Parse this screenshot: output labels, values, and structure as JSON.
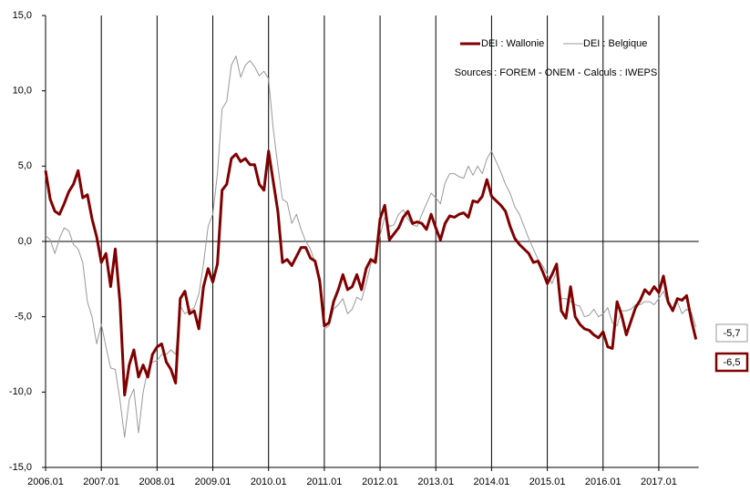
{
  "chart_data": {
    "type": "line",
    "annotation": "Sources : FOREM - ONEM - Calculs : IWEPS",
    "categories": [
      "2006.01",
      null,
      null,
      null,
      null,
      null,
      null,
      null,
      null,
      null,
      null,
      null,
      "2007.01",
      null,
      null,
      null,
      null,
      null,
      null,
      null,
      null,
      null,
      null,
      null,
      "2008.01",
      null,
      null,
      null,
      null,
      null,
      null,
      null,
      null,
      null,
      null,
      null,
      "2009.01",
      null,
      null,
      null,
      null,
      null,
      null,
      null,
      null,
      null,
      null,
      null,
      "2010.01",
      null,
      null,
      null,
      null,
      null,
      null,
      null,
      null,
      null,
      null,
      null,
      "2011.01",
      null,
      null,
      null,
      null,
      null,
      null,
      null,
      null,
      null,
      null,
      null,
      "2012.01",
      null,
      null,
      null,
      null,
      null,
      null,
      null,
      null,
      null,
      null,
      null,
      "2013.01",
      null,
      null,
      null,
      null,
      null,
      null,
      null,
      null,
      null,
      null,
      null,
      "2014.01",
      null,
      null,
      null,
      null,
      null,
      null,
      null,
      null,
      null,
      null,
      null,
      "2015.01",
      null,
      null,
      null,
      null,
      null,
      null,
      null,
      null,
      null,
      null,
      null,
      "2016.01",
      null,
      null,
      null,
      null,
      null,
      null,
      null,
      null,
      null,
      null,
      null,
      "2017.01",
      null,
      null,
      null,
      null,
      null,
      null,
      null,
      null
    ],
    "series": [
      {
        "name": "DEI : Wallonie",
        "color": "#800000",
        "width": 3,
        "values": [
          4.7,
          2.8,
          2.0,
          1.8,
          2.5,
          3.3,
          3.8,
          4.7,
          2.9,
          3.1,
          1.5,
          0.3,
          -1.4,
          -0.8,
          -3.0,
          -0.5,
          -4.0,
          -10.2,
          -8.2,
          -7.2,
          -9.0,
          -8.2,
          -9.0,
          -7.5,
          -7.0,
          -6.8,
          -8.0,
          -8.5,
          -9.4,
          -3.8,
          -3.3,
          -4.8,
          -4.6,
          -5.8,
          -3.0,
          -1.8,
          -2.7,
          -1.5,
          3.4,
          3.8,
          5.5,
          5.8,
          5.3,
          5.5,
          5.1,
          5.1,
          3.8,
          3.4,
          6.0,
          4.0,
          2.0,
          -1.4,
          -1.2,
          -1.6,
          -1.0,
          -0.4,
          -0.4,
          -1.1,
          -1.3,
          -2.6,
          -5.6,
          -5.4,
          -4.0,
          -3.2,
          -2.2,
          -3.2,
          -3.0,
          -2.2,
          -3.2,
          -1.8,
          -1.2,
          -1.4,
          1.5,
          2.4,
          0.1,
          0.5,
          0.9,
          1.6,
          2.0,
          1.2,
          1.3,
          1.2,
          0.8,
          1.8,
          0.9,
          0.1,
          1.2,
          1.7,
          1.6,
          1.8,
          1.9,
          1.6,
          2.7,
          2.6,
          3.0,
          4.1,
          3.0,
          2.7,
          2.4,
          2.0,
          1.0,
          0.2,
          -0.2,
          -0.5,
          -0.8,
          -1.4,
          -1.3,
          -2.0,
          -2.8,
          -2.2,
          -1.5,
          -4.6,
          -5.1,
          -3.0,
          -5.0,
          -5.5,
          -5.8,
          -5.9,
          -6.2,
          -6.4,
          -6.0,
          -7.0,
          -7.1,
          -4.0,
          -4.9,
          -6.2,
          -5.3,
          -4.4,
          -3.9,
          -3.2,
          -3.5,
          -3.0,
          -3.4,
          -2.3,
          -4.0,
          -4.6,
          -3.8,
          -3.9,
          -3.6,
          -5.2,
          -6.5
        ],
        "value_labels": [
          null,
          null,
          null,
          null,
          null,
          null,
          null,
          null,
          null,
          null,
          null,
          null,
          null,
          null,
          null,
          null,
          null,
          null,
          null,
          null,
          null,
          null,
          null,
          null,
          null,
          null,
          null,
          null,
          null,
          null,
          null,
          null,
          null,
          null,
          null,
          null,
          null,
          null,
          null,
          null,
          null,
          null,
          null,
          null,
          null,
          null,
          null,
          null,
          null,
          null,
          null,
          null,
          null,
          null,
          null,
          null,
          null,
          null,
          null,
          null,
          null,
          null,
          null,
          null,
          null,
          null,
          null,
          null,
          null,
          null,
          null,
          null,
          null,
          null,
          null,
          null,
          null,
          null,
          null,
          null,
          null,
          null,
          null,
          null,
          null,
          null,
          null,
          null,
          null,
          null,
          null,
          null,
          null,
          null,
          null,
          null,
          null,
          null,
          null,
          null,
          null,
          null,
          null,
          null,
          null,
          null,
          null,
          null,
          null,
          null,
          null,
          null,
          null,
          null,
          null,
          null,
          null,
          null,
          null,
          null,
          null,
          null,
          null,
          null,
          null,
          null,
          null,
          null,
          null,
          null,
          null,
          null,
          null,
          null,
          null,
          null,
          null,
          null,
          null,
          null,
          "-6,5"
        ]
      },
      {
        "name": "DEI : Belgique",
        "color": "#999999",
        "width": 1,
        "values": [
          0.4,
          0.1,
          -0.8,
          0.2,
          0.9,
          0.7,
          -0.2,
          -0.5,
          -1.4,
          -4.0,
          -5.0,
          -6.8,
          -5.5,
          -7.0,
          -8.4,
          -8.5,
          -10.5,
          -13.0,
          -10.5,
          -9.8,
          -12.7,
          -10.0,
          -8.5,
          -8.0,
          -7.9,
          -7.5,
          -7.5,
          -7.2,
          -7.5,
          -4.3,
          -4.8,
          -4.6,
          -4.4,
          -3.5,
          -1.5,
          1.0,
          1.8,
          4.5,
          8.8,
          9.3,
          11.7,
          12.3,
          10.9,
          11.7,
          12.0,
          11.6,
          11.0,
          11.3,
          10.8,
          7.5,
          5.0,
          2.8,
          2.6,
          1.2,
          1.8,
          0.8,
          0.0,
          -0.5,
          -1.4,
          -3.0,
          -5.8,
          -5.6,
          -4.5,
          -4.2,
          -3.8,
          -4.8,
          -4.5,
          -3.7,
          -3.9,
          -2.8,
          -1.5,
          -1.0,
          0.4,
          1.6,
          1.0,
          1.1,
          1.8,
          2.1,
          1.5,
          1.1,
          1.0,
          1.8,
          2.5,
          3.2,
          2.9,
          2.5,
          3.9,
          4.5,
          4.5,
          4.3,
          4.2,
          5.0,
          4.4,
          5.0,
          4.5,
          5.5,
          6.0,
          5.3,
          4.6,
          3.8,
          3.2,
          2.3,
          1.8,
          1.0,
          0.2,
          -0.5,
          -1.2,
          -1.6,
          -2.2,
          -2.8,
          -2.0,
          -3.8,
          -3.8,
          -4.0,
          -4.2,
          -4.3,
          -5.0,
          -4.9,
          -4.5,
          -5.0,
          -4.8,
          -4.4,
          -5.4,
          -5.6,
          -4.6,
          -4.6,
          -4.5,
          -4.2,
          -4.2,
          -4.0,
          -4.0,
          -4.2,
          -3.8,
          -3.3,
          -4.2,
          -4.5,
          -4.0,
          -4.8,
          -4.5,
          -4.7,
          -5.7
        ],
        "value_labels": [
          null,
          null,
          null,
          null,
          null,
          null,
          null,
          null,
          null,
          null,
          null,
          null,
          null,
          null,
          null,
          null,
          null,
          null,
          null,
          null,
          null,
          null,
          null,
          null,
          null,
          null,
          null,
          null,
          null,
          null,
          null,
          null,
          null,
          null,
          null,
          null,
          null,
          null,
          null,
          null,
          null,
          null,
          null,
          null,
          null,
          null,
          null,
          null,
          null,
          null,
          null,
          null,
          null,
          null,
          null,
          null,
          null,
          null,
          null,
          null,
          null,
          null,
          null,
          null,
          null,
          null,
          null,
          null,
          null,
          null,
          null,
          null,
          null,
          null,
          null,
          null,
          null,
          null,
          null,
          null,
          null,
          null,
          null,
          null,
          null,
          null,
          null,
          null,
          null,
          null,
          null,
          null,
          null,
          null,
          null,
          null,
          null,
          null,
          null,
          null,
          null,
          null,
          null,
          null,
          null,
          null,
          null,
          null,
          null,
          null,
          null,
          null,
          null,
          null,
          null,
          null,
          null,
          null,
          null,
          null,
          null,
          null,
          null,
          null,
          null,
          null,
          null,
          null,
          null,
          null,
          null,
          null,
          null,
          null,
          null,
          null,
          null,
          null,
          null,
          null,
          "-5,7"
        ]
      }
    ],
    "ylim": [
      -15,
      15
    ],
    "yticks": [
      {
        "value": -15,
        "label": "-15,0"
      },
      {
        "value": -10,
        "label": "-10,0"
      },
      {
        "value": -5,
        "label": "-5,0"
      },
      {
        "value": 0,
        "label": "0,0"
      },
      {
        "value": 5,
        "label": "5,0"
      },
      {
        "value": 10,
        "label": "10,0"
      },
      {
        "value": 15,
        "label": "15,0"
      }
    ],
    "legend": "top-right"
  }
}
